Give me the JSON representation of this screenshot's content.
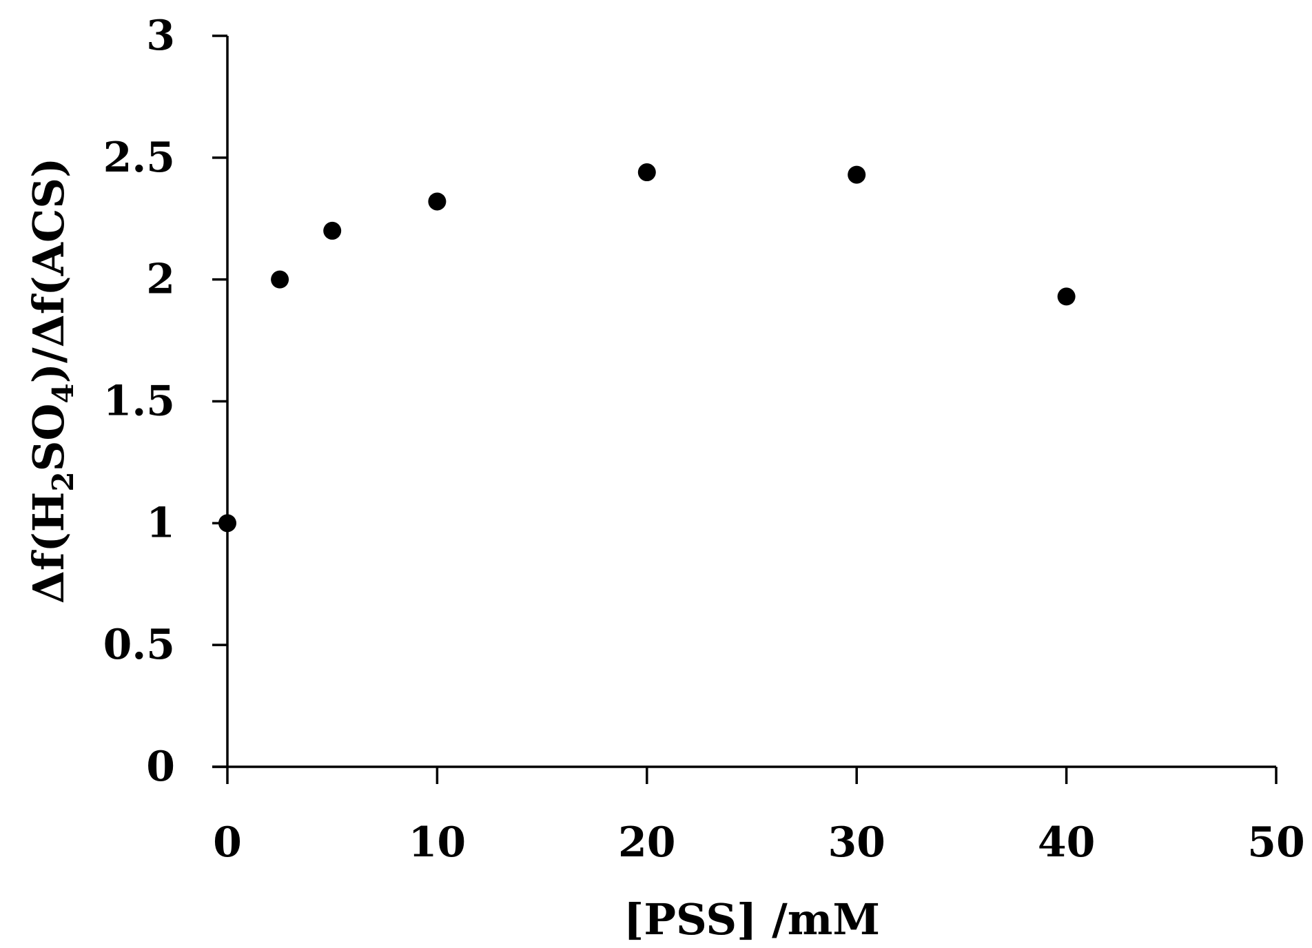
{
  "chart_data": {
    "type": "scatter",
    "xlabel": "[PSS] /mM",
    "ylabel_parts": {
      "part1": "Δf(H",
      "sub1": "2",
      "part2": "SO",
      "sub2": "4",
      "part3": ")/Δf(ACS)"
    },
    "xlim": [
      0,
      50
    ],
    "ylim": [
      0,
      3
    ],
    "x_ticks": [
      0,
      10,
      20,
      30,
      40,
      50
    ],
    "y_ticks": [
      0,
      0.5,
      1,
      1.5,
      2,
      2.5,
      3
    ],
    "x_tick_labels": [
      "0",
      "10",
      "20",
      "30",
      "40",
      "50"
    ],
    "y_tick_labels": [
      "0",
      "0.5",
      "1",
      "1.5",
      "2",
      "2.5",
      "3"
    ],
    "grid": false,
    "marker_color": "#000000",
    "series": [
      {
        "points": [
          {
            "x": 0,
            "y": 1.0
          },
          {
            "x": 2.5,
            "y": 2.0
          },
          {
            "x": 5,
            "y": 2.2
          },
          {
            "x": 10,
            "y": 2.32
          },
          {
            "x": 20,
            "y": 2.44
          },
          {
            "x": 30,
            "y": 2.43
          },
          {
            "x": 40,
            "y": 1.93
          }
        ]
      }
    ]
  }
}
